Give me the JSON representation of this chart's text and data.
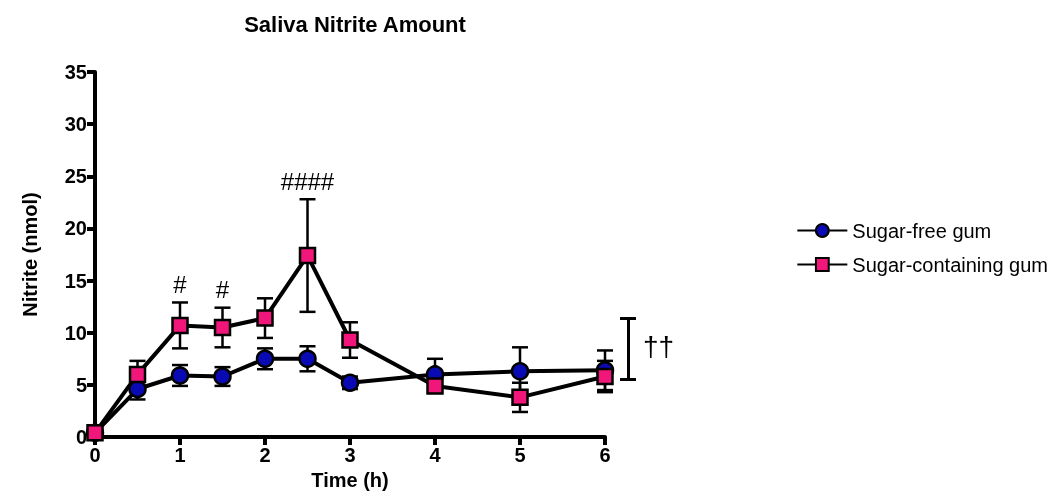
{
  "chart_data": {
    "type": "line",
    "title": "Saliva Nitrite Amount",
    "xlabel": "Time (h)",
    "ylabel": "Nitrite (nmol)",
    "x": [
      0,
      0.5,
      1,
      1.5,
      2,
      2.5,
      3,
      4,
      5,
      6
    ],
    "series": [
      {
        "name": "Sugar-free gum",
        "color": "#0a0ab4",
        "marker": "circle",
        "values": [
          0.4,
          4.6,
          5.9,
          5.8,
          7.5,
          7.5,
          5.2,
          6.0,
          6.3,
          6.4
        ],
        "errors": [
          null,
          1.0,
          1.0,
          0.9,
          1.0,
          1.2,
          0.6,
          1.5,
          2.3,
          1.9
        ]
      },
      {
        "name": "Sugar-containing gum",
        "color": "#f0167a",
        "marker": "square",
        "values": [
          0.4,
          6.0,
          10.7,
          10.5,
          11.4,
          17.4,
          9.3,
          4.9,
          3.8,
          5.8
        ],
        "errors": [
          null,
          1.3,
          2.2,
          1.9,
          1.9,
          5.4,
          1.7,
          0.6,
          1.4,
          1.5
        ]
      }
    ],
    "xlim": [
      0,
      6
    ],
    "xticks": [
      0,
      1,
      2,
      3,
      4,
      5,
      6
    ],
    "ylim": [
      0,
      35
    ],
    "yticks": [
      0,
      5,
      10,
      15,
      20,
      25,
      30,
      35
    ],
    "grid": false,
    "legend": "right",
    "line_style": "solid",
    "annotations": [
      {
        "text": "#",
        "x": 1,
        "y": 10.7
      },
      {
        "text": "#",
        "x": 1.5,
        "y": 10.5
      },
      {
        "text": "####",
        "x": 2.5,
        "y": 17.4
      },
      "††"
    ]
  }
}
